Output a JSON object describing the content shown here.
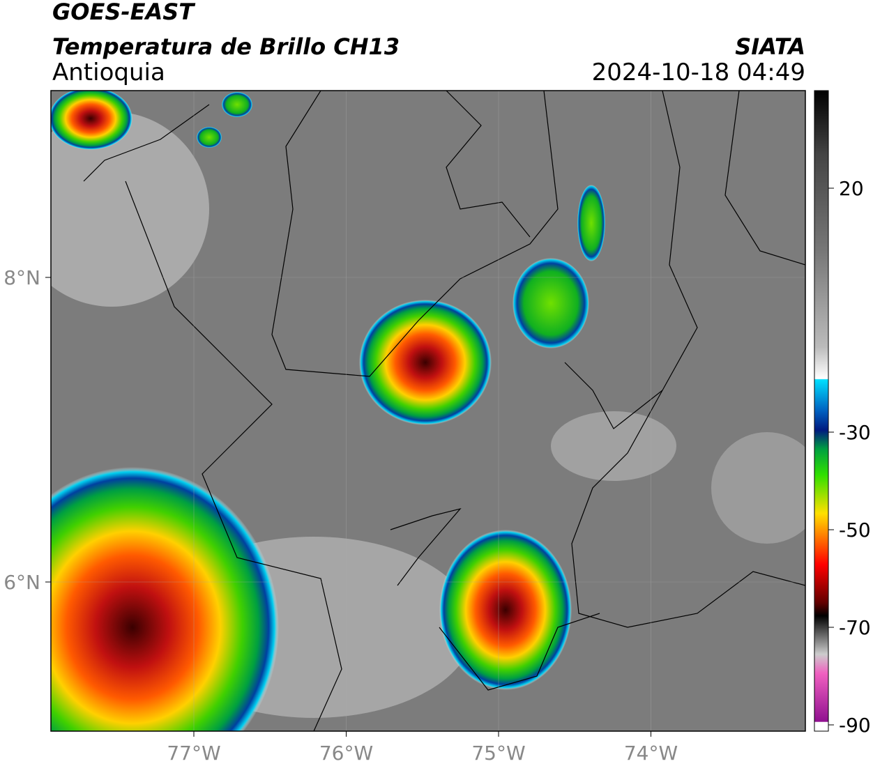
{
  "header": {
    "product": "GOES-EAST",
    "title": "Temperatura de Brillo CH13",
    "region": "Antioquia",
    "source": "SIATA",
    "datetime": "2024-10-18 04:49"
  },
  "map": {
    "lat_ticks": [
      {
        "value": 8,
        "label": "8°N"
      },
      {
        "value": 6,
        "label": "6°N"
      }
    ],
    "lon_ticks": [
      {
        "value": -77,
        "label": "77°W"
      },
      {
        "value": -76,
        "label": "76°W"
      },
      {
        "value": -75,
        "label": "75°W"
      },
      {
        "value": -74,
        "label": "74°W"
      }
    ]
  },
  "colorbar": {
    "ticks": [
      20,
      -30,
      -50,
      -70,
      -90
    ]
  }
}
